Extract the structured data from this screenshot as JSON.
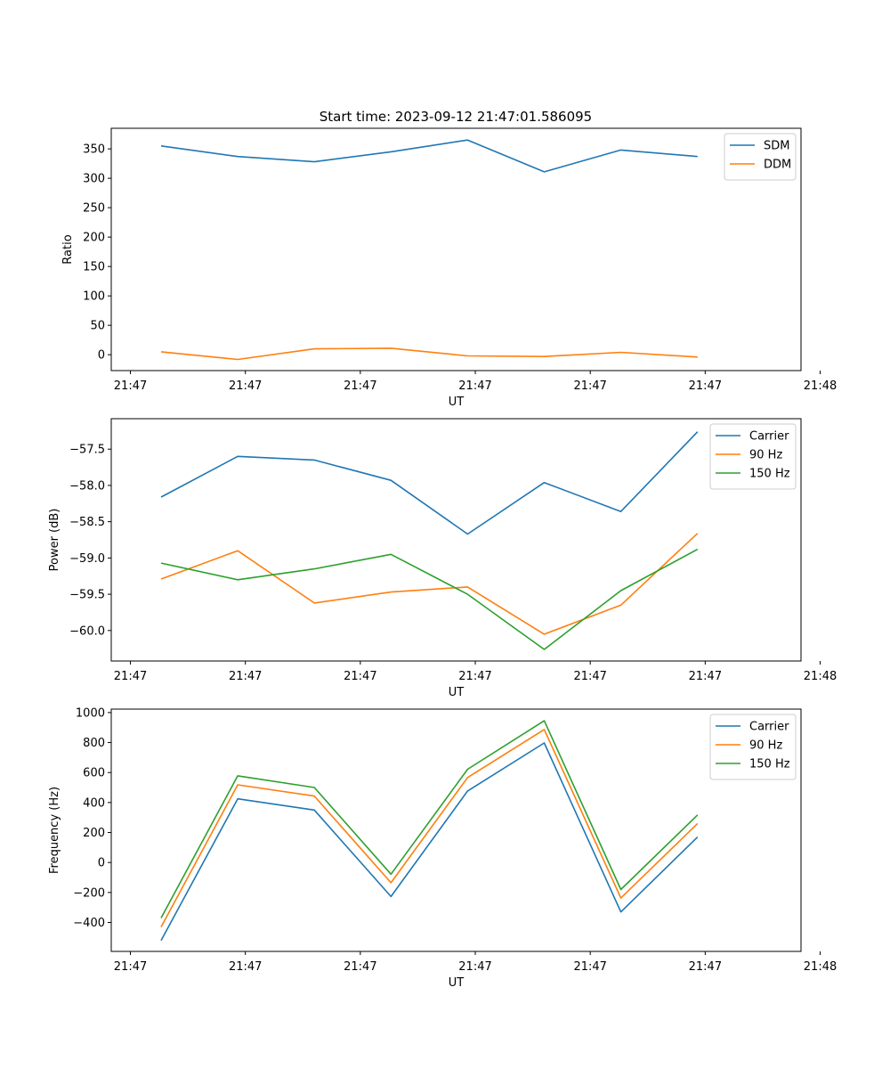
{
  "figure_title": "Start time: 2023-09-12 21:47:01.586095",
  "colors": {
    "blue": "#1f77b4",
    "orange": "#ff7f0e",
    "green": "#2ca02c",
    "axis": "#000000",
    "legend_border": "#cccccc"
  },
  "chart_data": [
    {
      "type": "line",
      "title": "Start time: 2023-09-12 21:47:01.586095",
      "xlabel": "UT",
      "ylabel": "Ratio",
      "xlim": [
        -0.65,
        8.35
      ],
      "ylim": [
        -27,
        385
      ],
      "x_ticks": [
        -0.4,
        1.1,
        2.6,
        4.1,
        5.6,
        7.1,
        8.6
      ],
      "x_tick_labels": [
        "21:47",
        "21:47",
        "21:47",
        "21:47",
        "21:47",
        "21:47",
        "21:48"
      ],
      "y_ticks": [
        0,
        50,
        100,
        150,
        200,
        250,
        300,
        350
      ],
      "y_tick_labels": [
        "0",
        "50",
        "100",
        "150",
        "200",
        "250",
        "300",
        "350"
      ],
      "x": [
        0,
        1,
        2,
        3,
        4,
        5,
        6,
        7
      ],
      "legend_position": "upper-right",
      "series": [
        {
          "name": "SDM",
          "color": "#1f77b4",
          "values": [
            355,
            337,
            328,
            345,
            365,
            311,
            348,
            337
          ]
        },
        {
          "name": "DDM",
          "color": "#ff7f0e",
          "values": [
            5,
            -8,
            10,
            11,
            -2,
            -3,
            4,
            -4
          ]
        }
      ]
    },
    {
      "type": "line",
      "title": "",
      "xlabel": "UT",
      "ylabel": "Power (dB)",
      "xlim": [
        -0.65,
        8.35
      ],
      "ylim": [
        -60.42,
        -57.08
      ],
      "x_ticks": [
        -0.4,
        1.1,
        2.6,
        4.1,
        5.6,
        7.1,
        8.6
      ],
      "x_tick_labels": [
        "21:47",
        "21:47",
        "21:47",
        "21:47",
        "21:47",
        "21:47",
        "21:48"
      ],
      "y_ticks": [
        -60.0,
        -59.5,
        -59.0,
        -58.5,
        -58.0,
        -57.5
      ],
      "y_tick_labels": [
        "−60.0",
        "−59.5",
        "−59.0",
        "−58.5",
        "−58.0",
        "−57.5"
      ],
      "x": [
        0,
        1,
        2,
        3,
        4,
        5,
        6,
        7
      ],
      "legend_position": "upper-right",
      "series": [
        {
          "name": "Carrier",
          "color": "#1f77b4",
          "values": [
            -58.16,
            -57.6,
            -57.65,
            -57.93,
            -58.67,
            -57.96,
            -58.36,
            -57.26
          ]
        },
        {
          "name": "90 Hz",
          "color": "#ff7f0e",
          "values": [
            -59.29,
            -58.9,
            -59.62,
            -59.47,
            -59.4,
            -60.05,
            -59.65,
            -58.66
          ]
        },
        {
          "name": "150 Hz",
          "color": "#2ca02c",
          "values": [
            -59.07,
            -59.3,
            -59.15,
            -58.95,
            -59.5,
            -60.26,
            -59.45,
            -58.88
          ]
        }
      ]
    },
    {
      "type": "line",
      "title": "",
      "xlabel": "UT",
      "ylabel": "Frequency (Hz)",
      "xlim": [
        -0.65,
        8.35
      ],
      "ylim": [
        -593,
        1023
      ],
      "x_ticks": [
        -0.4,
        1.1,
        2.6,
        4.1,
        5.6,
        7.1,
        8.6
      ],
      "x_tick_labels": [
        "21:47",
        "21:47",
        "21:47",
        "21:47",
        "21:47",
        "21:47",
        "21:48"
      ],
      "y_ticks": [
        -400,
        -200,
        0,
        200,
        400,
        600,
        800,
        1000
      ],
      "y_tick_labels": [
        "−400",
        "−200",
        "0",
        "200",
        "400",
        "600",
        "800",
        "1000"
      ],
      "x": [
        0,
        1,
        2,
        3,
        4,
        5,
        6,
        7
      ],
      "legend_position": "upper-right",
      "series": [
        {
          "name": "Carrier",
          "color": "#1f77b4",
          "values": [
            -520,
            425,
            350,
            -227,
            477,
            797,
            -330,
            170
          ]
        },
        {
          "name": "90 Hz",
          "color": "#ff7f0e",
          "values": [
            -430,
            518,
            443,
            -135,
            567,
            887,
            -237,
            260
          ]
        },
        {
          "name": "150 Hz",
          "color": "#2ca02c",
          "values": [
            -370,
            578,
            500,
            -78,
            622,
            945,
            -180,
            317
          ]
        }
      ]
    }
  ]
}
